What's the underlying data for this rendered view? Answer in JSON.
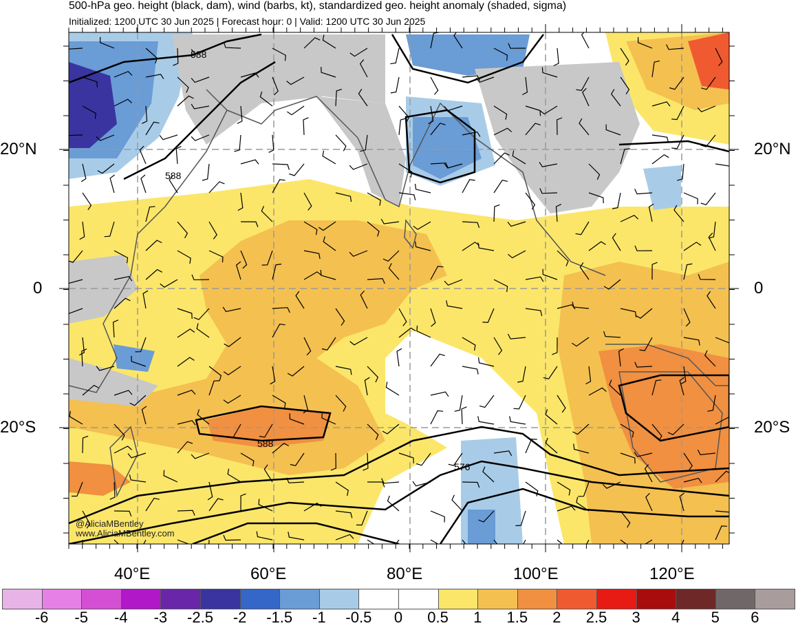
{
  "header": {
    "title": "500-hPa geo. height (black, dam), wind (barbs, kt), standardized geo. height anomaly (shaded, sigma)",
    "subtitle": "Initialized: 1200 UTC 30 Jun 2025 | Forecast hour: 0 | Valid: 1200 UTC 30 Jun 2025"
  },
  "map": {
    "lat_labels_left": [
      "20°N",
      "0",
      "20°S"
    ],
    "lat_labels_right": [
      "20°N",
      "0",
      "20°S"
    ],
    "lon_labels": [
      "40°E",
      "60°E",
      "80°E",
      "100°E",
      "120°E"
    ],
    "contour_labels": [
      "588",
      "588",
      "588",
      "576"
    ],
    "credit": [
      "@AliciaMBentley",
      "www.AliciaMBentley.com"
    ]
  },
  "colorbar": {
    "colors": [
      "#e8b4e8",
      "#e680e6",
      "#d54fd5",
      "#b018c8",
      "#6a26a8",
      "#3a34a0",
      "#3467c8",
      "#6a9cd6",
      "#a8cce8",
      "#ffffff",
      "#ffffff",
      "#fbe66a",
      "#f4c050",
      "#f09040",
      "#f05a30",
      "#e81a14",
      "#a80c0c",
      "#6e2828",
      "#706868",
      "#a89c9c"
    ],
    "labels": [
      "-6",
      "-5",
      "-4",
      "-3",
      "-2.5",
      "-2",
      "-1.5",
      "-1",
      "-0.5",
      "0",
      "0.5",
      "1",
      "1.5",
      "2",
      "2.5",
      "3",
      "4",
      "5",
      "6"
    ]
  }
}
